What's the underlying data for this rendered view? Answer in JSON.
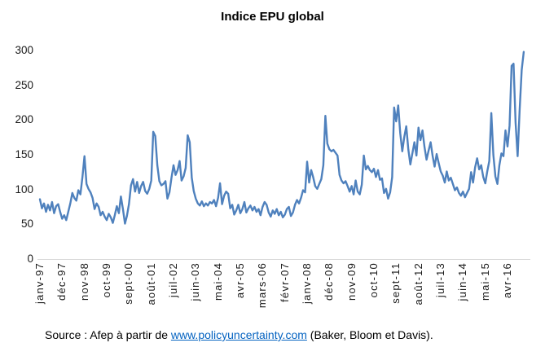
{
  "title": "Indice EPU global",
  "source": {
    "prefix": "Source : Afep à partir de ",
    "link_text": "www.policyuncertainty.com",
    "suffix": " (Baker, Bloom et Davis)."
  },
  "colors": {
    "line": "#4F81BD",
    "axis": "#D9D9D9",
    "link": "#0563C1",
    "text": "#1a1a1a"
  },
  "chart_data": {
    "type": "line",
    "title": "Indice EPU global",
    "series_name": "Indice EPU global",
    "x_frequency": "monthly",
    "x_start_label": "janv-97",
    "x_tick_every_months": 11,
    "x_tick_labels": [
      "janv-97",
      "déc-97",
      "nov-98",
      "oct-99",
      "sept-00",
      "août-01",
      "juil-02",
      "juin-03",
      "mai-04",
      "avr-05",
      "mars-06",
      "févr-07",
      "janv-08",
      "déc-08",
      "nov-09",
      "oct-10",
      "sept-11",
      "août-12",
      "juil-13",
      "juin-14",
      "mai-15",
      "avr-16"
    ],
    "ylabel": "",
    "xlabel": "",
    "ylim": [
      0,
      300
    ],
    "yticks": [
      0,
      50,
      100,
      150,
      200,
      250,
      300
    ],
    "grid": false,
    "legend": "none",
    "values": [
      86,
      73,
      80,
      68,
      78,
      70,
      82,
      66,
      76,
      79,
      68,
      58,
      63,
      56,
      68,
      80,
      95,
      88,
      84,
      99,
      93,
      118,
      148,
      108,
      101,
      96,
      88,
      72,
      80,
      75,
      63,
      68,
      61,
      56,
      65,
      60,
      52,
      63,
      76,
      66,
      90,
      72,
      51,
      62,
      79,
      106,
      115,
      97,
      111,
      95,
      105,
      111,
      98,
      94,
      101,
      113,
      183,
      177,
      135,
      112,
      106,
      108,
      112,
      87,
      96,
      117,
      135,
      121,
      128,
      141,
      113,
      119,
      131,
      178,
      168,
      117,
      98,
      87,
      80,
      77,
      83,
      76,
      80,
      77,
      82,
      80,
      85,
      76,
      88,
      109,
      79,
      91,
      97,
      94,
      73,
      78,
      64,
      70,
      78,
      66,
      72,
      82,
      67,
      73,
      77,
      70,
      75,
      68,
      72,
      63,
      75,
      82,
      78,
      67,
      61,
      70,
      65,
      72,
      63,
      68,
      60,
      64,
      72,
      75,
      62,
      67,
      78,
      85,
      80,
      88,
      99,
      96,
      140,
      110,
      128,
      118,
      105,
      101,
      108,
      115,
      135,
      206,
      166,
      158,
      155,
      157,
      153,
      149,
      121,
      113,
      109,
      112,
      105,
      97,
      105,
      93,
      113,
      97,
      93,
      107,
      149,
      129,
      134,
      128,
      125,
      130,
      118,
      128,
      114,
      116,
      95,
      101,
      87,
      96,
      118,
      218,
      198,
      221,
      181,
      155,
      176,
      191,
      158,
      136,
      152,
      168,
      149,
      189,
      171,
      185,
      161,
      143,
      156,
      168,
      148,
      133,
      151,
      138,
      126,
      120,
      110,
      126,
      113,
      117,
      108,
      99,
      103,
      95,
      91,
      97,
      89,
      95,
      101,
      125,
      110,
      132,
      145,
      129,
      135,
      118,
      109,
      126,
      141,
      210,
      150,
      119,
      108,
      135,
      152,
      148,
      185,
      162,
      192,
      278,
      281,
      196,
      148,
      215,
      272,
      298
    ]
  }
}
